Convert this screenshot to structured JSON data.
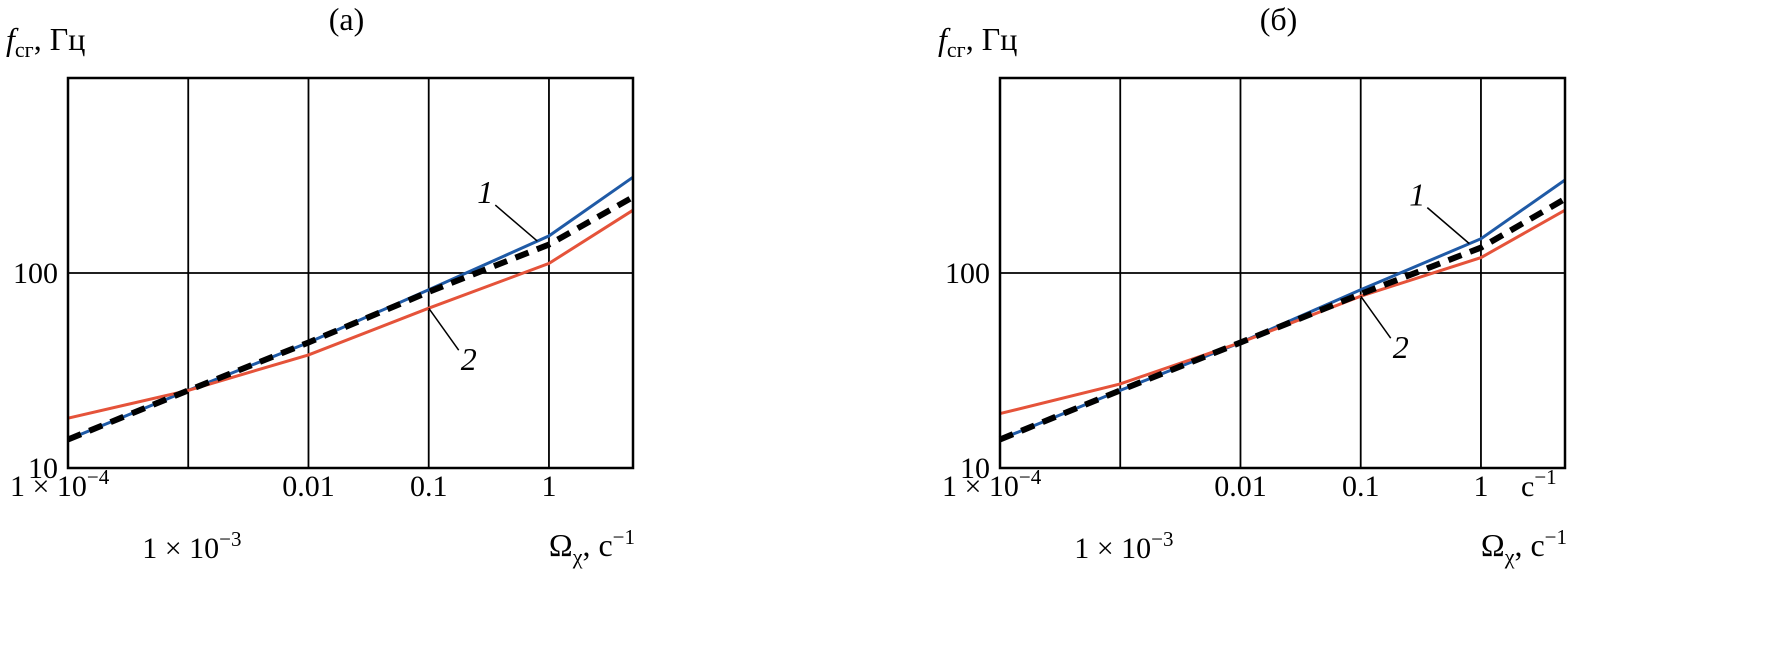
{
  "chart_data": [
    {
      "type": "line",
      "title": "(а)",
      "ylabel": {
        "main": "f",
        "sub": "сг",
        "unit": ", Гц"
      },
      "xlabel": {
        "main": "Ω",
        "sub": "χ",
        "unit": ", с",
        "sup": "−1"
      },
      "x_scale": "log",
      "y_scale": "log",
      "xlim": [
        0.0001,
        5
      ],
      "ylim": [
        10,
        1000
      ],
      "x_ticks": [
        {
          "value": 0.0001,
          "label": "1 × 10",
          "sup": "−4",
          "row": "upper"
        },
        {
          "value": 0.001,
          "label": "1 × 10",
          "sup": "−3",
          "row": "lower"
        },
        {
          "value": 0.01,
          "label": "0.01",
          "row": "upper"
        },
        {
          "value": 0.1,
          "label": "0.1",
          "row": "upper"
        },
        {
          "value": 1,
          "label": "1",
          "row": "upper"
        }
      ],
      "y_ticks": [
        {
          "value": 10,
          "label": "10"
        },
        {
          "value": 100,
          "label": "100"
        }
      ],
      "grid": true,
      "series": [
        {
          "marker": "1",
          "color": "#1f5aa6",
          "style": "solid",
          "x": [
            0.0001,
            0.001,
            0.01,
            0.1,
            1,
            5
          ],
          "y": [
            14,
            25,
            44,
            82,
            155,
            310
          ]
        },
        {
          "marker": "2",
          "color": "#e5533a",
          "style": "solid",
          "x": [
            0.0001,
            0.001,
            0.01,
            0.1,
            1,
            5
          ],
          "y": [
            18,
            25,
            38,
            66,
            112,
            210
          ]
        },
        {
          "color": "#000000",
          "style": "dashed",
          "x": [
            0.0001,
            0.001,
            0.01,
            0.1,
            1,
            5
          ],
          "y": [
            14,
            25,
            44,
            80,
            140,
            245
          ]
        }
      ],
      "annotations": [
        {
          "text": "1",
          "series": 0,
          "at_x": 0.8
        },
        {
          "text": "2",
          "series": 1,
          "at_x": 0.1
        }
      ]
    },
    {
      "type": "line",
      "title": "(б)",
      "ylabel": {
        "main": "f",
        "sub": "сг",
        "unit": ", Гц"
      },
      "xlabel": {
        "main": "Ω",
        "sub": "χ",
        "unit": ", с",
        "sup": "−1"
      },
      "x_scale": "log",
      "y_scale": "log",
      "xlim": [
        0.0001,
        5
      ],
      "ylim": [
        10,
        1000
      ],
      "x_ticks": [
        {
          "value": 0.0001,
          "label": "1 × 10",
          "sup": "−4",
          "row": "upper"
        },
        {
          "value": 0.001,
          "label": "1 × 10",
          "sup": "−3",
          "row": "lower"
        },
        {
          "value": 0.01,
          "label": "0.01",
          "row": "upper"
        },
        {
          "value": 0.1,
          "label": "0.1",
          "row": "upper"
        },
        {
          "value": 1,
          "label": "1",
          "row": "upper"
        }
      ],
      "x_extra_label": {
        "text": "с",
        "sup": "−1"
      },
      "y_ticks": [
        {
          "value": 10,
          "label": "10"
        },
        {
          "value": 100,
          "label": "100"
        }
      ],
      "grid": true,
      "series": [
        {
          "marker": "1",
          "color": "#1f5aa6",
          "style": "solid",
          "x": [
            0.0001,
            0.001,
            0.01,
            0.1,
            1,
            5
          ],
          "y": [
            14,
            25,
            44,
            82,
            150,
            300
          ]
        },
        {
          "marker": "2",
          "color": "#e5533a",
          "style": "solid",
          "x": [
            0.0001,
            0.001,
            0.01,
            0.1,
            1,
            5
          ],
          "y": [
            19,
            27,
            44,
            76,
            120,
            210
          ]
        },
        {
          "color": "#000000",
          "style": "dashed",
          "x": [
            0.0001,
            0.001,
            0.01,
            0.1,
            1,
            5
          ],
          "y": [
            14,
            25,
            44,
            78,
            135,
            240
          ]
        }
      ],
      "annotations": [
        {
          "text": "1",
          "series": 0,
          "at_x": 0.8
        },
        {
          "text": "2",
          "series": 1,
          "at_x": 0.1
        }
      ]
    }
  ]
}
